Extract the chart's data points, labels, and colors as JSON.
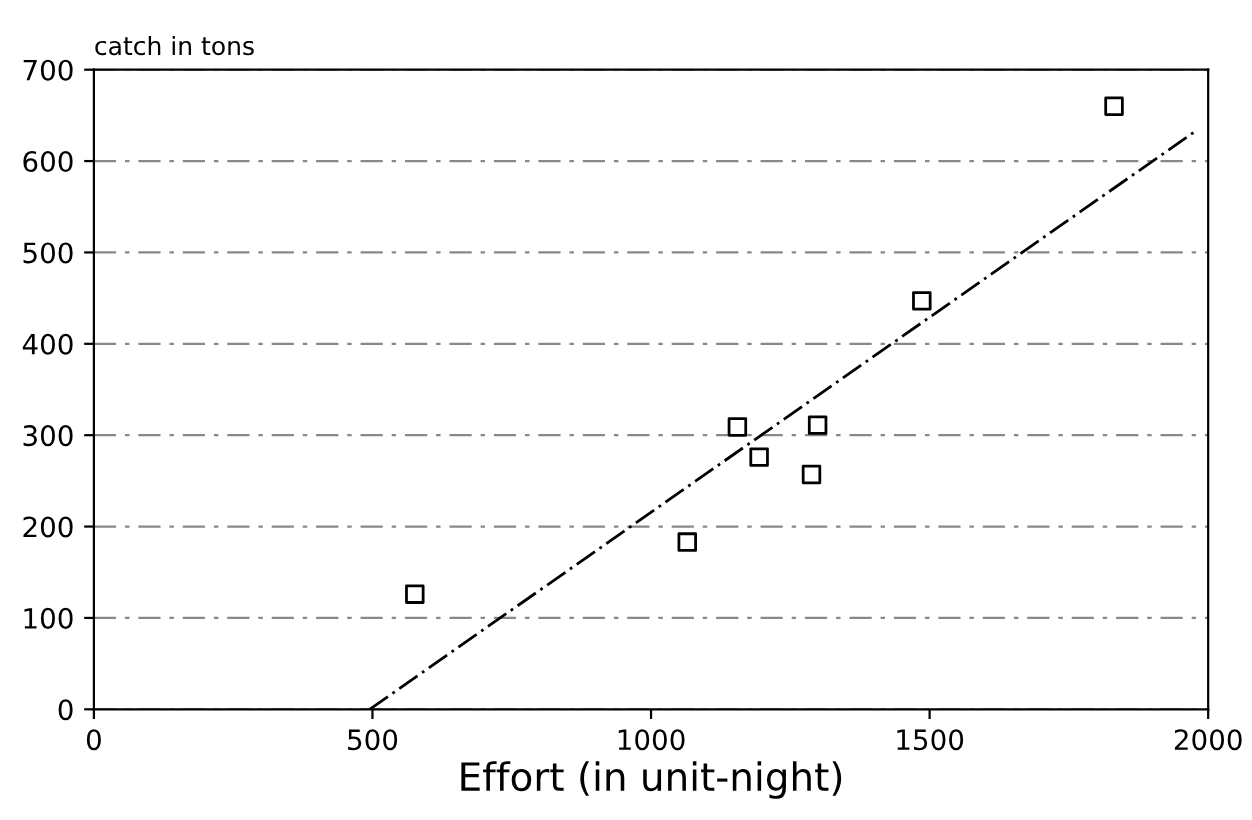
{
  "chart_data": {
    "type": "scatter",
    "xlabel": "Effort (in unit-night)",
    "ylabel": "catch in tons",
    "xlim": [
      0,
      2000
    ],
    "xticks": [
      0,
      500,
      1000,
      1500,
      2000
    ],
    "ylim": [
      0,
      700
    ],
    "yticks": [
      0,
      100,
      200,
      300,
      400,
      500,
      600,
      700
    ],
    "grid": "y",
    "series": [
      {
        "marker": "square",
        "color": "#000000",
        "x": [
          576,
          1065,
          1155,
          1194,
          1288,
          1299,
          1486,
          1831
        ],
        "values": [
          126,
          183,
          309,
          276,
          257,
          311,
          447,
          660
        ]
      },
      {
        "type": "line",
        "color": "#000000",
        "line_style": "dashed",
        "x": [
          495,
          1980
        ],
        "values": [
          0,
          634
        ]
      }
    ]
  }
}
